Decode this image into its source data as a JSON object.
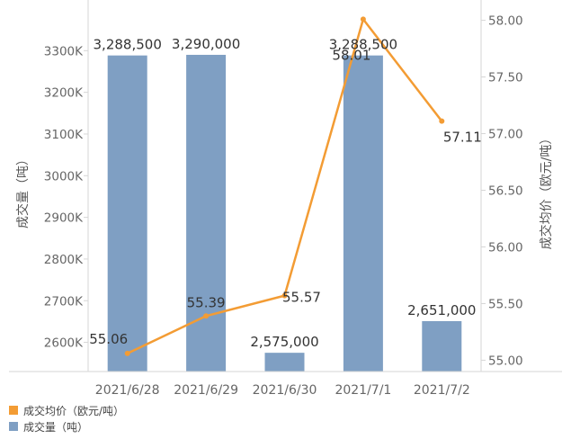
{
  "chart_data": {
    "type": "bar+line",
    "categories": [
      "2021/6/28",
      "2021/6/29",
      "2021/6/30",
      "2021/7/1",
      "2021/7/2"
    ],
    "bar_series": {
      "name": "成交量（吨）",
      "values": [
        3288500,
        3290000,
        2575000,
        3288500,
        2651000
      ],
      "labels": [
        "3,288,500",
        "3,290,000",
        "2,575,000",
        "3,288,500",
        "2,651,000"
      ],
      "color": "#7f9fc3",
      "axis": "left"
    },
    "line_series": {
      "name": "成交均价（欧元/吨）",
      "values": [
        55.06,
        55.39,
        55.57,
        58.01,
        57.11
      ],
      "labels": [
        "55.06",
        "55.39",
        "55.57",
        "58.01",
        "57.11"
      ],
      "color": "#f39c34",
      "axis": "right"
    },
    "y_left": {
      "label": "成交量（吨）",
      "range": [
        2530000,
        3400000
      ],
      "ticks": [
        2600000,
        2700000,
        2800000,
        2900000,
        3000000,
        3100000,
        3200000,
        3300000
      ],
      "tick_labels": [
        "2600K",
        "2700K",
        "2800K",
        "2900K",
        "3000K",
        "3100K",
        "3200K",
        "3300K"
      ]
    },
    "y_right": {
      "label": "成交均价（欧元/吨）",
      "range": [
        54.9,
        58.1
      ],
      "ticks": [
        55.0,
        55.5,
        56.0,
        56.5,
        57.0,
        57.5,
        58.0
      ],
      "tick_labels": [
        "55.00",
        "55.50",
        "56.00",
        "56.50",
        "57.00",
        "57.50",
        "58.00"
      ]
    },
    "grid": false,
    "legend_position": "bottom-left"
  },
  "legend": {
    "items": [
      {
        "label": "成交均价（欧元/吨）",
        "color": "#f39c34"
      },
      {
        "label": "成交量（吨）",
        "color": "#7f9fc3"
      }
    ]
  }
}
